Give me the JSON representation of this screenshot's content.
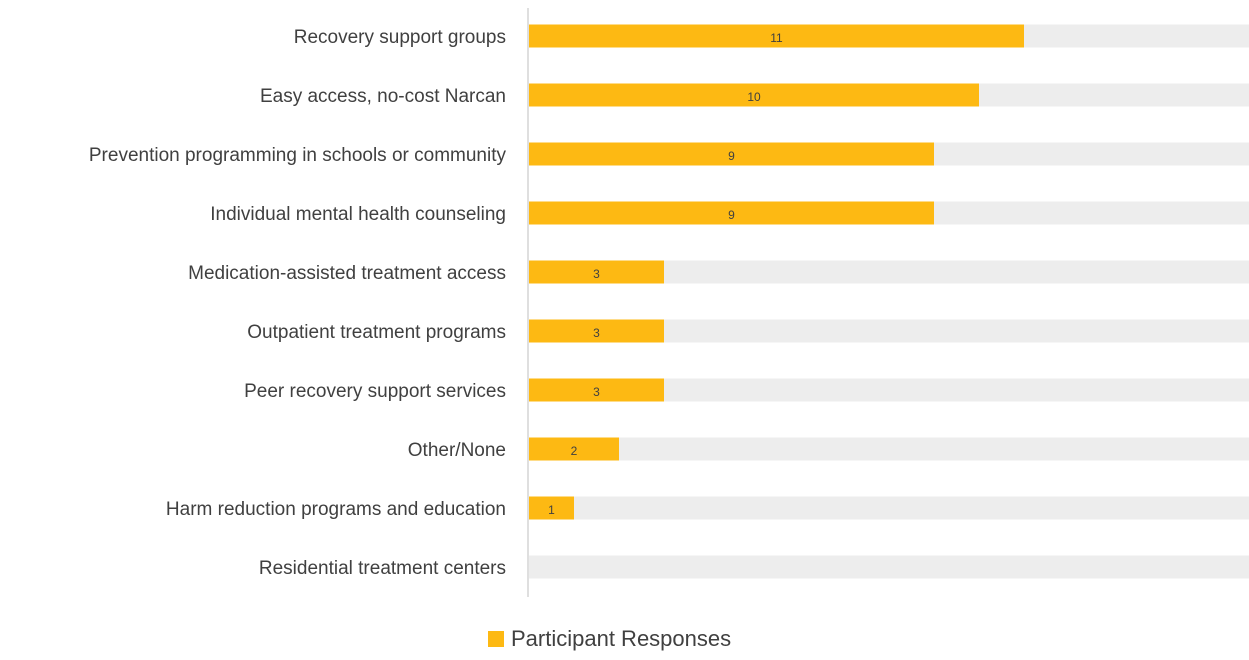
{
  "chart_data": {
    "type": "bar",
    "orientation": "horizontal",
    "categories": [
      "Recovery support groups",
      "Easy access, no-cost Narcan",
      "Prevention programming in schools or community",
      "Individual mental health counseling",
      "Medication-assisted treatment access",
      "Outpatient treatment programs",
      "Peer recovery support services",
      "Other/None",
      "Harm reduction programs and education",
      "Residential treatment centers"
    ],
    "series": [
      {
        "name": "Participant Responses",
        "values": [
          11,
          10,
          9,
          9,
          3,
          3,
          3,
          2,
          1,
          0
        ],
        "color": "#FDB913"
      }
    ],
    "data_labels": [
      "11",
      "10",
      "9",
      "9",
      "3",
      "3",
      "3",
      "2",
      "1",
      ""
    ],
    "xlim": [
      0,
      16
    ],
    "background_track_color": "#EDEDED",
    "legend_position": "bottom",
    "grid": false
  }
}
